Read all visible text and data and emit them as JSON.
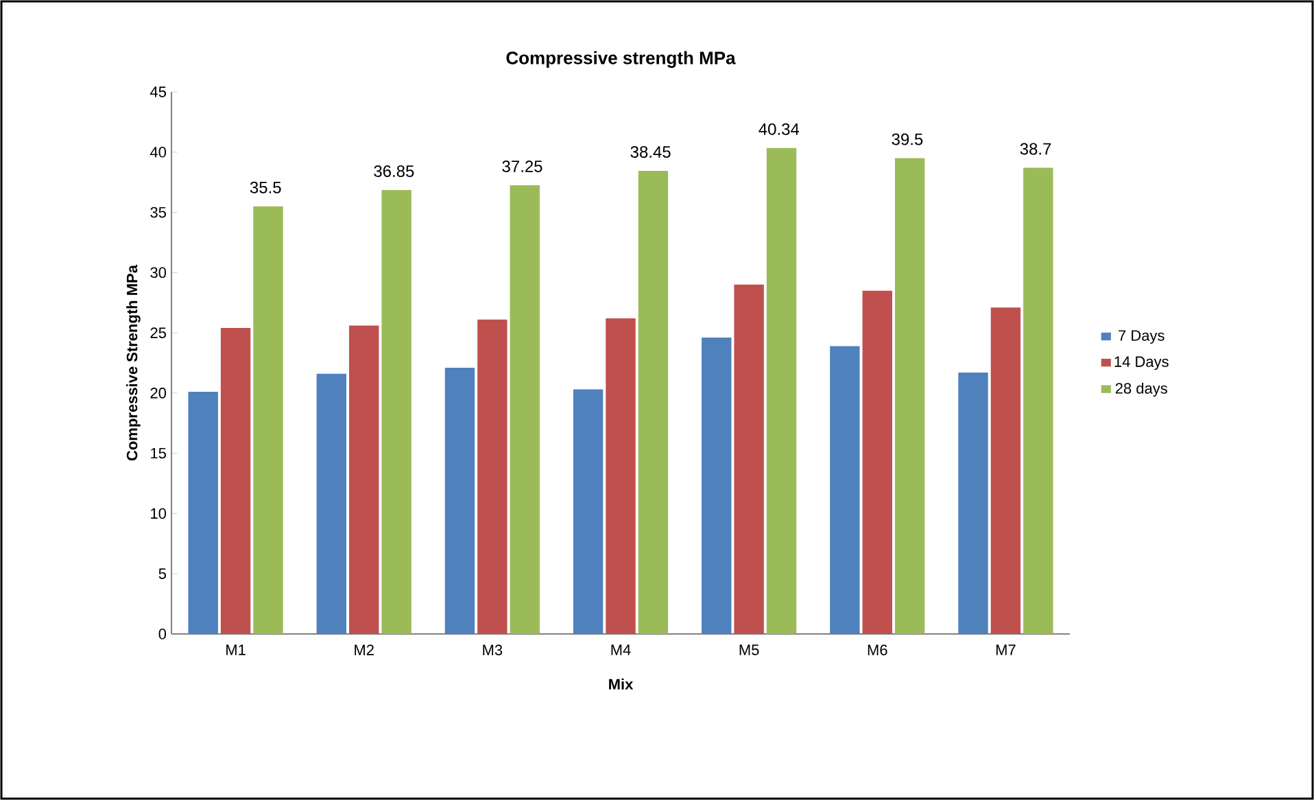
{
  "chart_data": {
    "type": "bar",
    "title": "Compressive strength MPa",
    "xlabel": "Mix",
    "ylabel": "Compressive Strength MPa",
    "categories": [
      "M1",
      "M2",
      "M3",
      "M4",
      "M5",
      "M6",
      "M7"
    ],
    "series": [
      {
        "name": "7 Days",
        "color": "#4f81bd",
        "values": [
          20.1,
          21.6,
          22.1,
          20.3,
          24.6,
          23.9,
          21.7
        ]
      },
      {
        "name": "14 Days",
        "color": "#c0504d",
        "values": [
          25.4,
          25.6,
          26.1,
          26.2,
          29.0,
          28.5,
          27.1
        ]
      },
      {
        "name": "28 days",
        "color": "#9bbb59",
        "values": [
          35.5,
          36.85,
          37.25,
          38.45,
          40.34,
          39.5,
          38.7
        ],
        "value_labels": [
          "35.5",
          "36.85",
          "37.25",
          "38.45",
          "40.34",
          "39.5",
          "38.7"
        ]
      }
    ],
    "ylim": [
      0,
      45
    ],
    "yticks": [
      0,
      5,
      10,
      15,
      20,
      25,
      30,
      35,
      40,
      45
    ],
    "grid": false,
    "legend": "right"
  }
}
